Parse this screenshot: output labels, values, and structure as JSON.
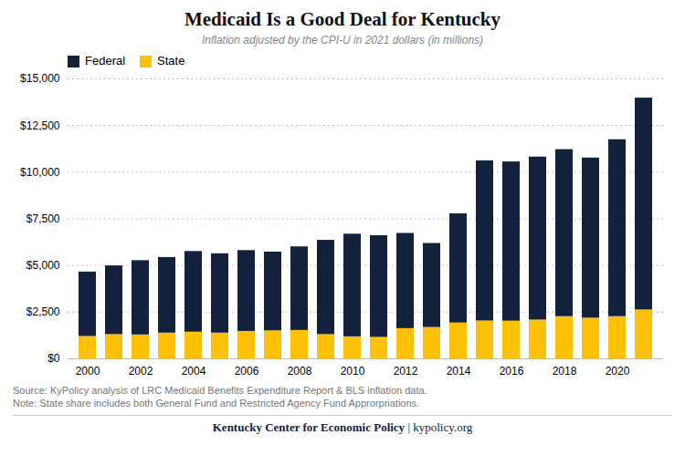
{
  "chart_data": {
    "type": "bar",
    "title": "Medicaid Is a Good Deal for Kentucky",
    "subtitle": "Inflation adjusted by the CPI-U in 2021 dollars (in millions)",
    "categories": [
      "2000",
      null,
      "2002",
      null,
      "2004",
      null,
      "2006",
      null,
      "2008",
      null,
      "2010",
      null,
      "2012",
      null,
      "2014",
      null,
      "2016",
      null,
      "2018",
      null,
      "2020",
      null
    ],
    "series": [
      {
        "name": "State",
        "color": "#ffc107",
        "values": [
          1200,
          1300,
          1280,
          1380,
          1430,
          1380,
          1470,
          1500,
          1520,
          1300,
          1180,
          1150,
          1620,
          1680,
          1920,
          2030,
          2020,
          2080,
          2260,
          2180,
          2260,
          2620
        ]
      },
      {
        "name": "Federal",
        "color": "#14213d",
        "values": [
          3450,
          3680,
          3980,
          4050,
          4320,
          4250,
          4330,
          4220,
          4480,
          5050,
          5500,
          5450,
          5100,
          4500,
          5850,
          8580,
          8530,
          8730,
          8950,
          8580,
          9480,
          11350
        ]
      }
    ],
    "stacked": true,
    "ylim": [
      0,
      15000
    ],
    "yticks": [
      {
        "value": 0,
        "label": "$0"
      },
      {
        "value": 2500,
        "label": "$2,500"
      },
      {
        "value": 5000,
        "label": "$5,000"
      },
      {
        "value": 7500,
        "label": "$7,500"
      },
      {
        "value": 10000,
        "label": "$10,000"
      },
      {
        "value": 12500,
        "label": "$12,500"
      },
      {
        "value": 15000,
        "label": "$15,000"
      }
    ],
    "grid": true,
    "legend": "upper left",
    "source": "Source: KyPolicy analysis of LRC Medicaid Benefits Expenditure Report & BLS inflation data.",
    "note": "Note: State share includes both General Fund and Restricted Agency Fund Approrpriations.",
    "footer_bold": "Kentucky Center for Economic Policy",
    "footer_regular": " | kypolicy.org",
    "footer_color": "#14213d"
  }
}
